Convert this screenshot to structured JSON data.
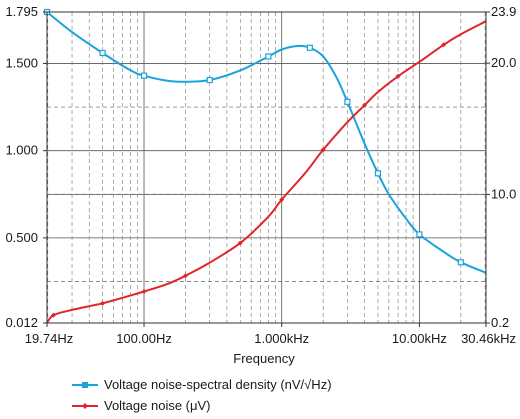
{
  "chart_data": {
    "type": "line",
    "xlabel": "Frequency",
    "xscale": "log",
    "x_range_hz": [
      19.74,
      30460
    ],
    "x_tick_values": [
      19.74,
      100,
      1000,
      10000,
      30460
    ],
    "x_tick_labels": [
      "19.74Hz",
      "100.00Hz",
      "1.000kHz",
      "10.00kHz",
      "30.46kHz"
    ],
    "y_left_range": [
      0.012,
      1.795
    ],
    "y_left_ticks": [
      0.012,
      0.5,
      1.0,
      1.5,
      1.795
    ],
    "y_left_tick_labels": [
      "0.012",
      "0.500",
      "1.000",
      "1.500",
      "1.795"
    ],
    "y_right_range": [
      0.2,
      23.9
    ],
    "y_right_ticks": [
      0.2,
      10.0,
      20.0,
      23.9
    ],
    "y_right_tick_labels": [
      "0.2",
      "10.0",
      "20.0",
      "23.9"
    ],
    "grid": true,
    "legend_placement": "bottom",
    "series": [
      {
        "name": "Voltage noise-spectral density (nV/√Hz)",
        "axis": "left",
        "color": "#1aa3dc",
        "x": [
          19.74,
          30,
          50,
          80,
          100,
          150,
          200,
          300,
          500,
          800,
          1000,
          1300,
          1600,
          2000,
          2500,
          3000,
          4000,
          5000,
          6000,
          8000,
          10000,
          15000,
          20000,
          30460
        ],
        "y": [
          1.795,
          1.68,
          1.56,
          1.46,
          1.43,
          1.4,
          1.395,
          1.405,
          1.46,
          1.54,
          1.58,
          1.6,
          1.59,
          1.54,
          1.42,
          1.28,
          1.04,
          0.87,
          0.75,
          0.61,
          0.52,
          0.42,
          0.36,
          0.3
        ]
      },
      {
        "name": "Voltage noise (μV)",
        "axis": "right",
        "color": "#e0262a",
        "x": [
          19.74,
          22,
          30,
          50,
          80,
          100,
          150,
          200,
          300,
          500,
          800,
          1000,
          1500,
          2000,
          3000,
          4000,
          5000,
          7000,
          10000,
          15000,
          20000,
          30460
        ],
        "y": [
          0.2,
          0.8,
          1.2,
          1.7,
          2.3,
          2.6,
          3.2,
          3.8,
          4.8,
          6.3,
          8.3,
          9.6,
          11.7,
          13.4,
          15.5,
          16.8,
          17.8,
          19.0,
          20.1,
          21.4,
          22.2,
          23.2
        ]
      }
    ]
  }
}
